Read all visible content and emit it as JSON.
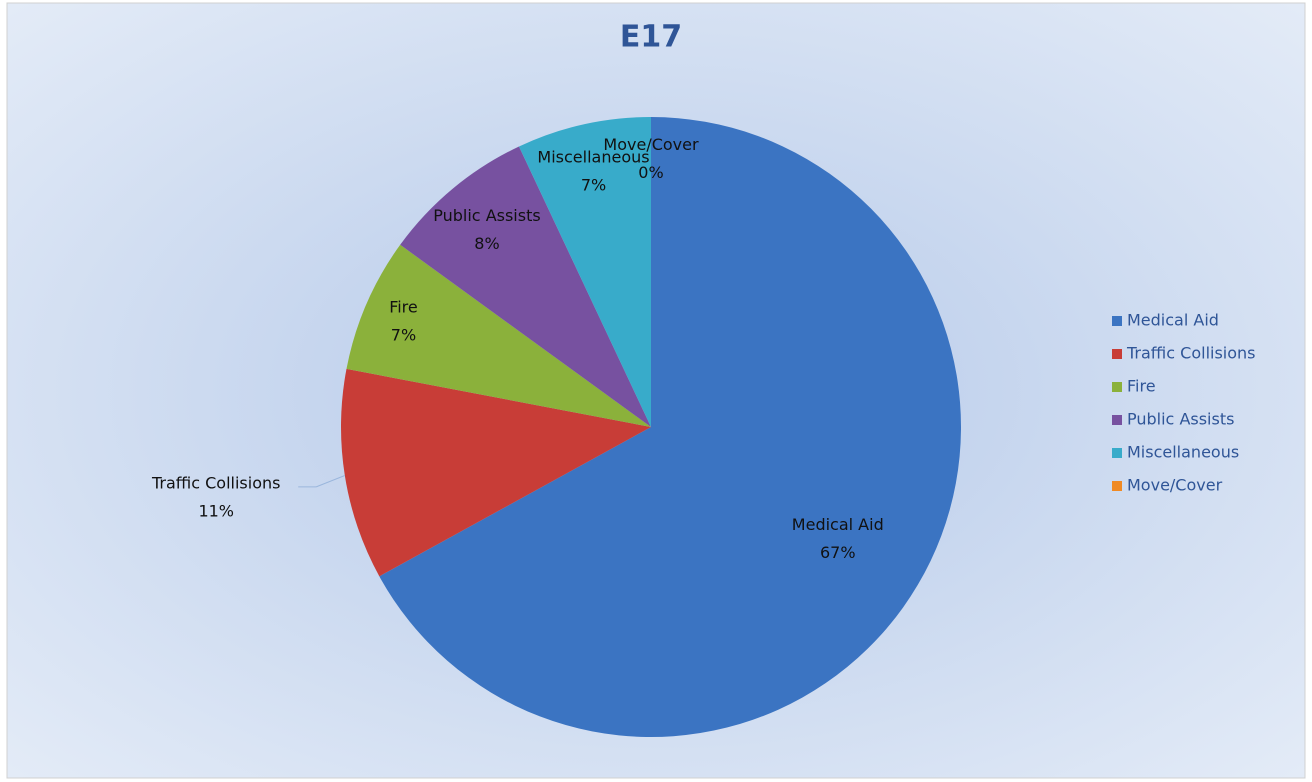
{
  "chart_data": {
    "type": "pie",
    "title": "E17",
    "categories": [
      "Medical Aid",
      "Traffic Collisions",
      "Fire",
      "Public Assists",
      "Miscellaneous",
      "Move/Cover"
    ],
    "values": [
      67,
      11,
      7,
      8,
      7,
      0
    ],
    "value_labels": [
      "67%",
      "11%",
      "7%",
      "8%",
      "7%",
      "0%"
    ],
    "colors": [
      "#3b74c2",
      "#c83d37",
      "#8bb13b",
      "#7751a0",
      "#38abca",
      "#f08a24"
    ],
    "legend": "right"
  }
}
